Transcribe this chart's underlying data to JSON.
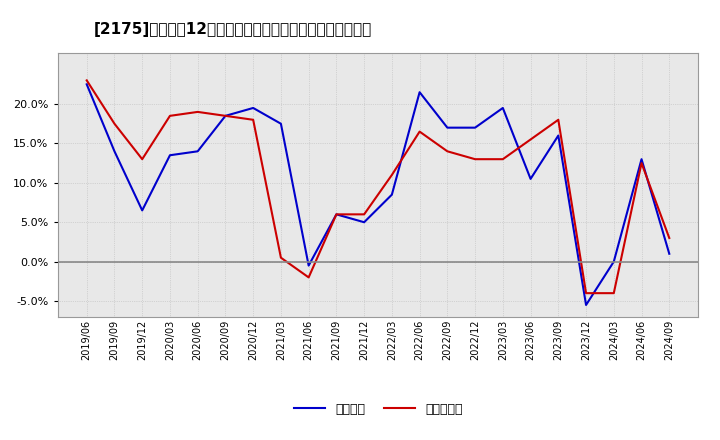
{
  "title": "[2175]　利益の12か月移動合計の対前年同期増減率の推移",
  "x_labels": [
    "2019/06",
    "2019/09",
    "2019/12",
    "2020/03",
    "2020/06",
    "2020/09",
    "2020/12",
    "2021/03",
    "2021/06",
    "2021/09",
    "2021/12",
    "2022/03",
    "2022/06",
    "2022/09",
    "2022/12",
    "2023/03",
    "2023/06",
    "2023/09",
    "2023/12",
    "2024/03",
    "2024/06",
    "2024/09"
  ],
  "keijo_rieki": [
    0.225,
    0.14,
    0.065,
    0.135,
    0.14,
    0.185,
    0.195,
    0.175,
    -0.005,
    0.06,
    0.05,
    0.085,
    0.215,
    0.17,
    0.17,
    0.195,
    0.105,
    0.16,
    -0.055,
    0.0,
    0.13,
    0.01
  ],
  "junrieki": [
    0.23,
    0.175,
    0.13,
    0.185,
    0.19,
    0.185,
    0.18,
    0.005,
    -0.02,
    0.06,
    0.06,
    0.11,
    0.165,
    0.14,
    0.13,
    0.13,
    0.155,
    0.18,
    -0.04,
    -0.04,
    0.125,
    0.03
  ],
  "line_color_keijo": "#0000cc",
  "line_color_junrieki": "#cc0000",
  "legend_keijo": "経常利益",
  "legend_junrieki": "当期純利益",
  "ylim": [
    -0.07,
    0.265
  ],
  "yticks": [
    -0.05,
    0.0,
    0.05,
    0.1,
    0.15,
    0.2
  ],
  "bg_color": "#ffffff",
  "plot_bg_color": "#e8e8e8",
  "grid_color": "#bbbbbb",
  "zero_line_color": "#888888",
  "title_fontsize": 11,
  "linewidth": 1.5
}
